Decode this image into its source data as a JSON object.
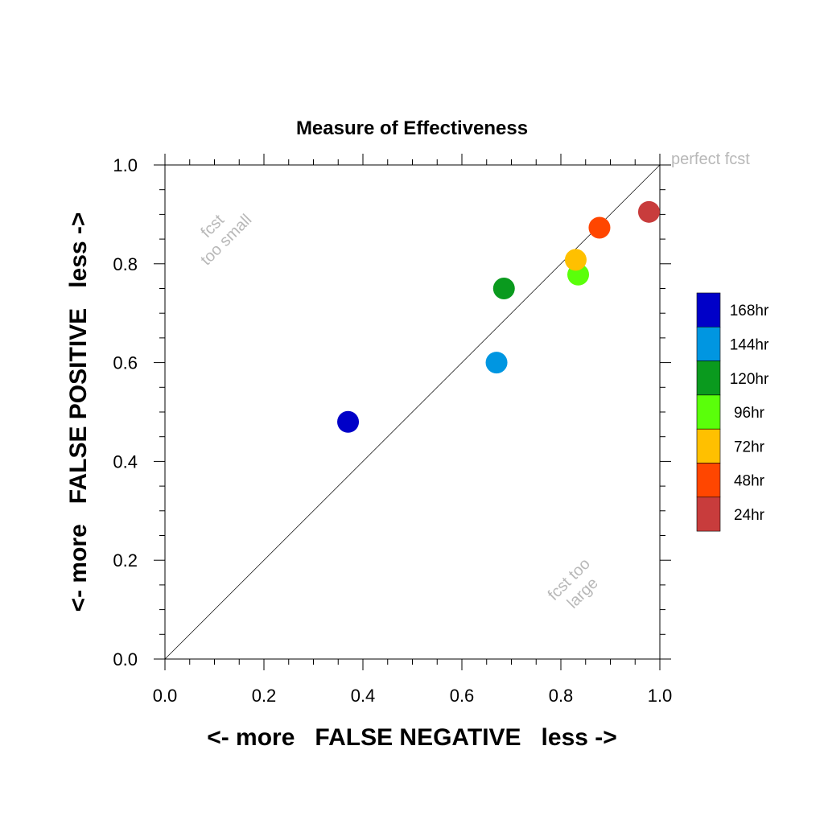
{
  "chart_data": {
    "type": "scatter",
    "title": "Measure of Effectiveness",
    "xlabel": "<- more   FALSE NEGATIVE   less ->",
    "ylabel": "<- more   FALSE POSITIVE   less ->",
    "xlim": [
      0.0,
      1.0
    ],
    "ylim": [
      0.0,
      1.0
    ],
    "x_tick_labels": [
      "0.0",
      "0.2",
      "0.4",
      "0.6",
      "0.8",
      "1.0"
    ],
    "y_tick_labels": [
      "0.0",
      "0.2",
      "0.4",
      "0.6",
      "0.8",
      "1.0"
    ],
    "grid": false,
    "legend_position": "right",
    "reference_line": "diagonal",
    "annotations": {
      "perfect": "perfect fcst",
      "too_small_1": "fcst",
      "too_small_2": "too small",
      "too_large_1": "fcst too",
      "too_large_2": "large"
    },
    "series": [
      {
        "name": "168hr",
        "color": "#0000c8",
        "x": 0.37,
        "y": 0.48
      },
      {
        "name": "144hr",
        "color": "#0096e1",
        "x": 0.67,
        "y": 0.6
      },
      {
        "name": "120hr",
        "color": "#0a9a1e",
        "x": 0.685,
        "y": 0.75
      },
      {
        "name": "96hr",
        "color": "#5aff0a",
        "x": 0.835,
        "y": 0.778
      },
      {
        "name": "72hr",
        "color": "#ffc000",
        "x": 0.83,
        "y": 0.808
      },
      {
        "name": "48hr",
        "color": "#ff4600",
        "x": 0.878,
        "y": 0.873
      },
      {
        "name": "24hr",
        "color": "#c83c3c",
        "x": 0.978,
        "y": 0.905
      }
    ]
  }
}
